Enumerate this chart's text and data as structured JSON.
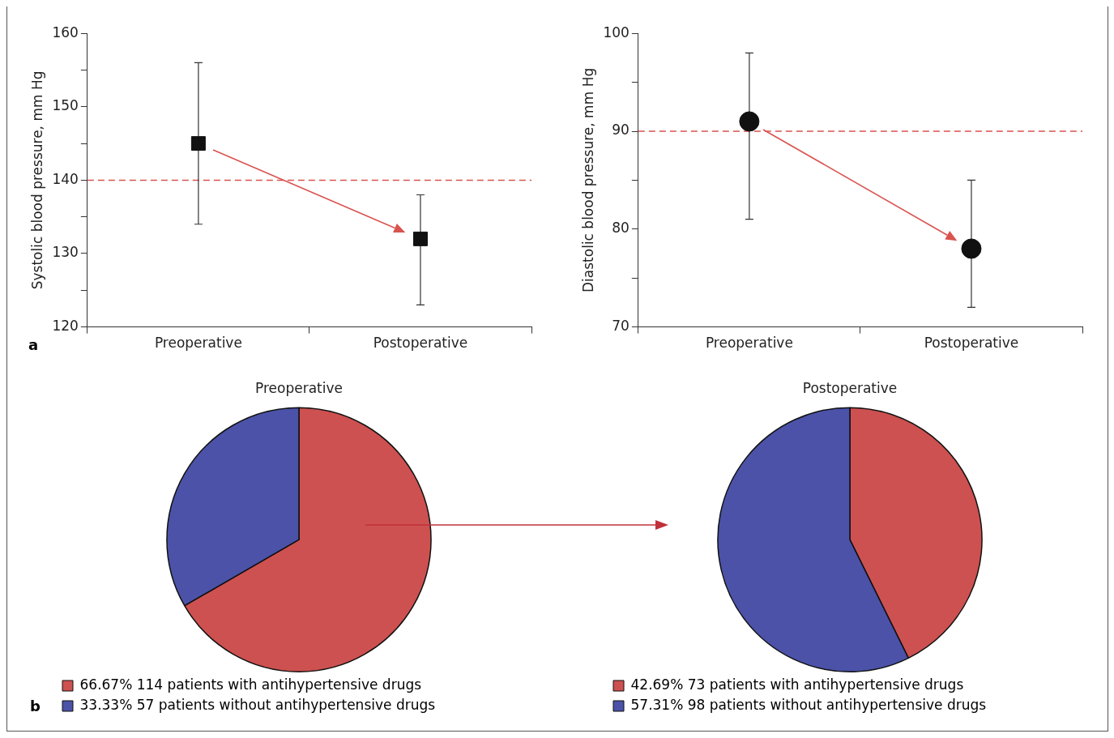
{
  "chart_data": [
    {
      "type": "scatter",
      "ylabel": "Systolic blood pressure, mm Hg",
      "categories": [
        "Preoperative",
        "Postoperative"
      ],
      "ylim": [
        120,
        160
      ],
      "yticks": [
        120,
        {
          "value": 125,
          "label": null
        },
        130,
        {
          "value": 135,
          "label": null
        },
        140,
        {
          "value": 145,
          "label": null
        },
        150,
        {
          "value": 155,
          "label": null
        },
        160
      ],
      "marker": "square",
      "series": [
        {
          "color": "#111111",
          "values": [
            145,
            132
          ],
          "errors": [
            [
              134,
              156
            ],
            [
              123,
              138
            ]
          ]
        }
      ],
      "ref_lines": [
        {
          "axis": "y",
          "value": 140,
          "color": "#d9534f",
          "line_style": "dashed"
        }
      ],
      "annotations": [
        "a"
      ]
    },
    {
      "type": "scatter",
      "ylabel": "Diastolic blood pressure, mm Hg",
      "categories": [
        "Preoperative",
        "Postoperative"
      ],
      "ylim": [
        70,
        100
      ],
      "yticks": [
        70,
        {
          "value": 75,
          "label": null
        },
        80,
        {
          "value": 85,
          "label": null
        },
        90,
        {
          "value": 95,
          "label": null
        },
        100
      ],
      "marker": "circle",
      "series": [
        {
          "color": "#111111",
          "values": [
            91,
            78
          ],
          "errors": [
            [
              81,
              98
            ],
            [
              72,
              85
            ]
          ]
        }
      ],
      "ref_lines": [
        {
          "axis": "y",
          "value": 90,
          "color": "#d9534f",
          "line_style": "dashed"
        }
      ]
    },
    {
      "type": "pie",
      "title": "Preoperative",
      "categories": [
        "66.67% 114 patients with antihypertensive drugs",
        "33.33% 57 patients without antihypertensive drugs"
      ],
      "values": [
        66.67,
        33.33
      ],
      "colors": [
        "#cd5150",
        "#4b52a8"
      ],
      "legend": "bottom",
      "annotations": [
        "b"
      ]
    },
    {
      "type": "pie",
      "title": "Postoperative",
      "categories": [
        "42.69% 73 patients with antihypertensive drugs",
        "57.31% 98 patients without antihypertensive drugs"
      ],
      "values": [
        42.69,
        57.31
      ],
      "colors": [
        "#cd5150",
        "#4b52a8"
      ],
      "legend": "bottom"
    }
  ]
}
